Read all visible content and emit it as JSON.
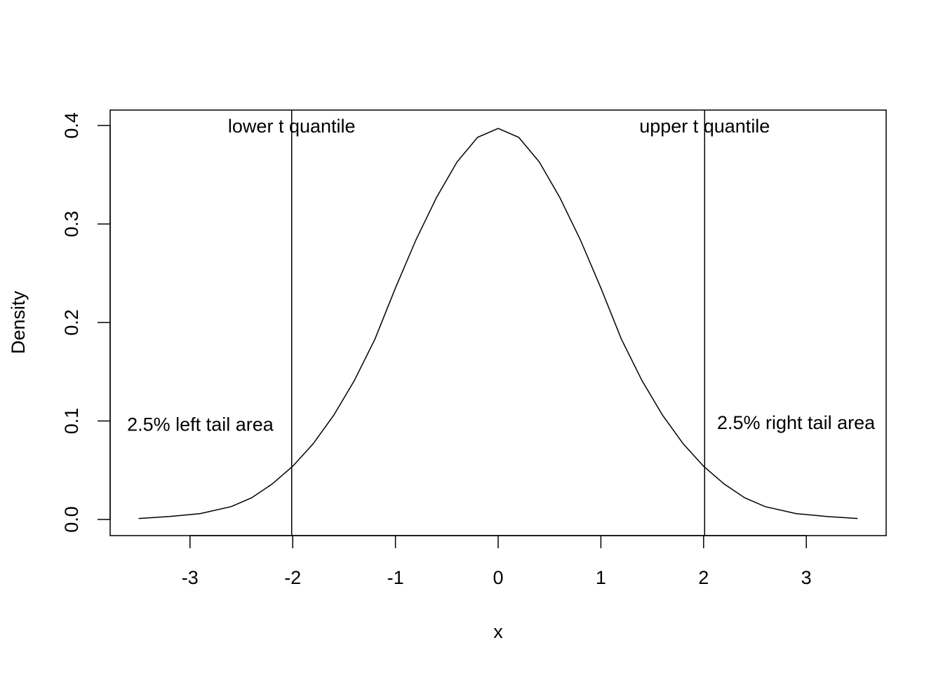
{
  "chart_data": {
    "type": "line",
    "title": "",
    "xlabel": "x",
    "ylabel": "Density",
    "xlim": [
      -3.5,
      3.5
    ],
    "ylim": [
      0,
      0.4
    ],
    "x_ticks": [
      -3,
      -2,
      -1,
      0,
      1,
      2,
      3
    ],
    "x_tick_labels": [
      "-3",
      "-2",
      "-1",
      "0",
      "1",
      "2",
      "3"
    ],
    "y_ticks": [
      0,
      0.1,
      0.2,
      0.3,
      0.4
    ],
    "y_tick_labels": [
      "0.0",
      "0.1",
      "0.2",
      "0.3",
      "0.4"
    ],
    "grid": false,
    "legend": "none",
    "series": [
      {
        "x": [
          -3.5,
          -3.2,
          -2.9,
          -2.6,
          -2.4,
          -2.2,
          -2.0,
          -1.8,
          -1.6,
          -1.4,
          -1.2,
          -1.0,
          -0.8,
          -0.6,
          -0.4,
          -0.2,
          0.0,
          0.2,
          0.4,
          0.6,
          0.8,
          1.0,
          1.2,
          1.4,
          1.6,
          1.8,
          2.0,
          2.2,
          2.4,
          2.6,
          2.9,
          3.2,
          3.5
        ],
        "y": [
          0.001,
          0.003,
          0.006,
          0.013,
          0.022,
          0.036,
          0.054,
          0.077,
          0.106,
          0.141,
          0.183,
          0.235,
          0.284,
          0.327,
          0.363,
          0.388,
          0.397,
          0.388,
          0.363,
          0.327,
          0.284,
          0.235,
          0.183,
          0.141,
          0.106,
          0.077,
          0.054,
          0.036,
          0.022,
          0.013,
          0.006,
          0.003,
          0.001
        ]
      }
    ],
    "vlines": [
      {
        "x": -2.01,
        "label": "lower t quantile"
      },
      {
        "x": 2.01,
        "label": "upper t quantile"
      }
    ],
    "annotations": [
      {
        "text": "2.5% left tail area",
        "x": -2.9,
        "y": 0.097
      },
      {
        "text": "2.5% right tail area",
        "x": 2.9,
        "y": 0.099
      }
    ]
  }
}
